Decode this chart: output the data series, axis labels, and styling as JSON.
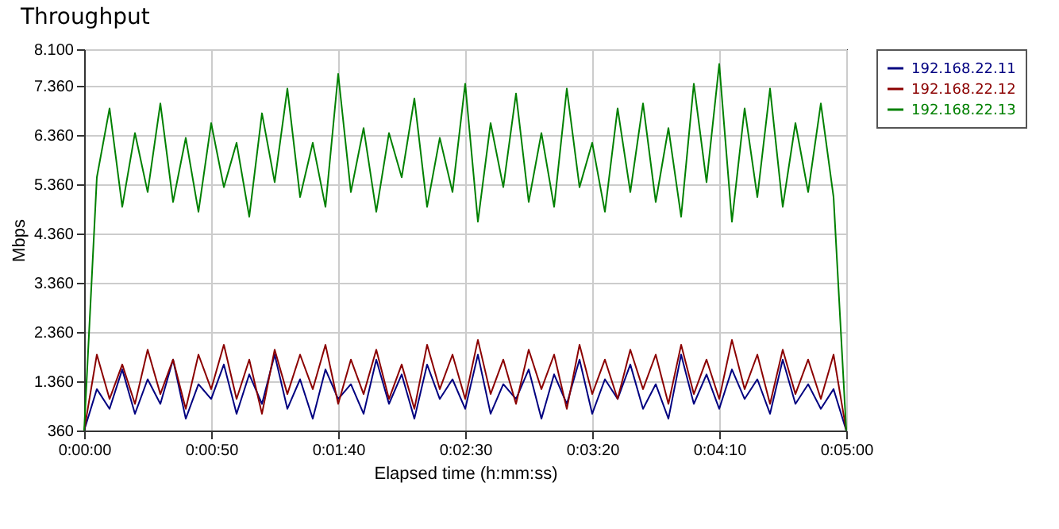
{
  "chart_data": {
    "type": "line",
    "title": "Throughput",
    "xlabel": "Elapsed time (h:mm:ss)",
    "ylabel": "Mbps",
    "x": [
      0,
      5,
      10,
      15,
      20,
      25,
      30,
      35,
      40,
      45,
      50,
      55,
      60,
      65,
      70,
      75,
      80,
      85,
      90,
      95,
      100,
      105,
      110,
      115,
      120,
      125,
      130,
      135,
      140,
      145,
      150,
      155,
      160,
      165,
      170,
      175,
      180,
      185,
      190,
      195,
      200,
      205,
      210,
      215,
      220,
      225,
      230,
      235,
      240,
      245,
      250,
      255,
      260,
      265,
      270,
      275,
      280,
      285,
      290,
      295,
      300
    ],
    "series": [
      {
        "name": "192.168.22.11",
        "color": "#000080",
        "values": [
          360,
          1200,
          800,
          1600,
          700,
          1400,
          900,
          1800,
          600,
          1300,
          1000,
          1700,
          700,
          1500,
          900,
          1900,
          800,
          1400,
          600,
          1600,
          1000,
          1300,
          700,
          1800,
          900,
          1500,
          600,
          1700,
          1000,
          1400,
          800,
          1900,
          700,
          1300,
          1000,
          1600,
          600,
          1500,
          900,
          1800,
          700,
          1400,
          1000,
          1700,
          800,
          1300,
          600,
          1900,
          900,
          1500,
          800,
          1600,
          1000,
          1400,
          700,
          1800,
          900,
          1300,
          800,
          1200,
          360
        ]
      },
      {
        "name": "192.168.22.12",
        "color": "#8b0000",
        "values": [
          360,
          1900,
          1000,
          1700,
          900,
          2000,
          1100,
          1800,
          800,
          1900,
          1200,
          2100,
          1000,
          1800,
          700,
          2000,
          1100,
          1900,
          1200,
          2100,
          900,
          1800,
          1100,
          2000,
          1000,
          1700,
          800,
          2100,
          1200,
          1900,
          1000,
          2200,
          1100,
          1800,
          900,
          2000,
          1200,
          1900,
          800,
          2100,
          1100,
          1800,
          1000,
          2000,
          1200,
          1900,
          900,
          2100,
          1100,
          1800,
          1000,
          2200,
          1200,
          1900,
          900,
          2000,
          1100,
          1800,
          1000,
          1900,
          360
        ]
      },
      {
        "name": "192.168.22.13",
        "color": "#008000",
        "values": [
          360,
          5500,
          6900,
          4900,
          6400,
          5200,
          7000,
          5000,
          6300,
          4800,
          6600,
          5300,
          6200,
          4700,
          6800,
          5400,
          7300,
          5100,
          6200,
          4900,
          7600,
          5200,
          6500,
          4800,
          6400,
          5500,
          7100,
          4900,
          6300,
          5200,
          7400,
          4600,
          6600,
          5300,
          7200,
          5000,
          6400,
          4900,
          7300,
          5300,
          6200,
          4800,
          6900,
          5200,
          7000,
          5000,
          6500,
          4700,
          7400,
          5400,
          7800,
          4600,
          6900,
          5100,
          7300,
          4900,
          6600,
          5200,
          7000,
          5100,
          360
        ]
      }
    ],
    "xlim": [
      0,
      300
    ],
    "xticks": [
      {
        "value": 0,
        "label": "0:00:00"
      },
      {
        "value": 50,
        "label": "0:00:50"
      },
      {
        "value": 100,
        "label": "0:01:40"
      },
      {
        "value": 150,
        "label": "0:02:30"
      },
      {
        "value": 200,
        "label": "0:03:20"
      },
      {
        "value": 250,
        "label": "0:04:10"
      },
      {
        "value": 300,
        "label": "0:05:00"
      }
    ],
    "ylim": [
      360,
      8100
    ],
    "yticks": [
      360,
      {
        "value": 1360,
        "label": "1.360"
      },
      {
        "value": 2360,
        "label": "2.360"
      },
      {
        "value": 3360,
        "label": "3.360"
      },
      {
        "value": 4360,
        "label": "4.360"
      },
      {
        "value": 5360,
        "label": "5.360"
      },
      {
        "value": 6360,
        "label": "6.360"
      },
      {
        "value": 7360,
        "label": "7.360"
      },
      {
        "value": 8100,
        "label": "8.100"
      }
    ],
    "grid": true,
    "legend": "top right",
    "marker": "none",
    "line_style": "solid"
  }
}
